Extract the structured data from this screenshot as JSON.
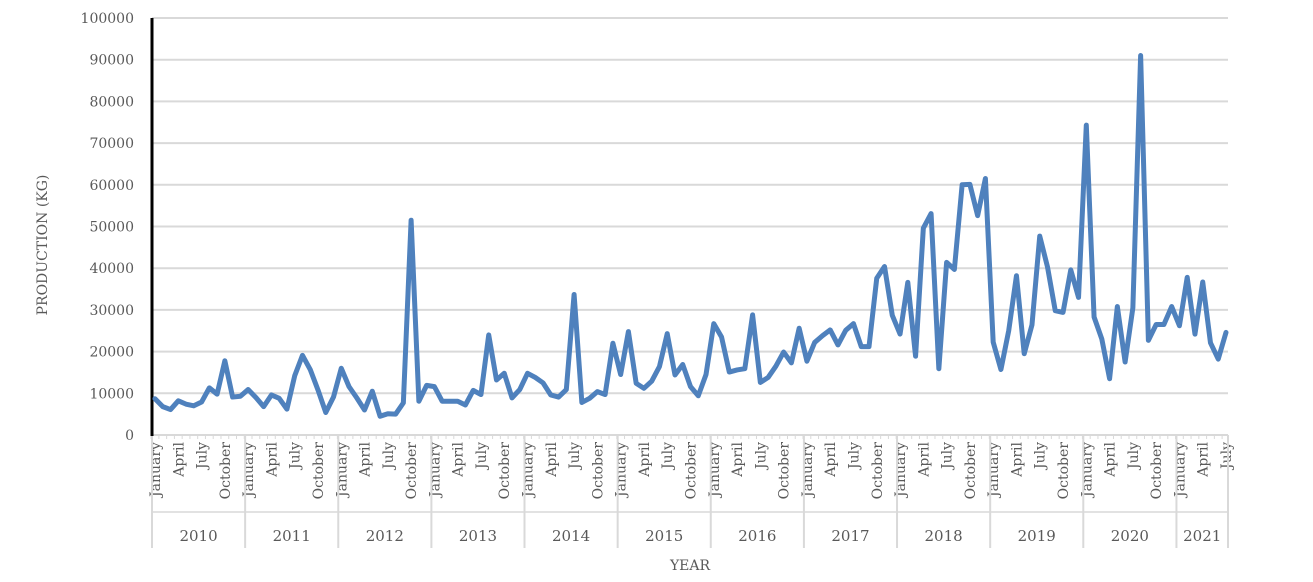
{
  "chart_data": {
    "type": "line",
    "title": "",
    "xlabel": "YEAR",
    "ylabel": "PRODUCTION (KG)",
    "ylim": [
      0,
      100000
    ],
    "yticks": [
      0,
      10000,
      20000,
      30000,
      40000,
      50000,
      60000,
      70000,
      80000,
      90000,
      100000
    ],
    "grid": "horizontal",
    "line_color": "#4f81bd",
    "month_tick_labels": [
      "January",
      "April",
      "July",
      "October"
    ],
    "year_groups": [
      {
        "year": "2010",
        "months": 12
      },
      {
        "year": "2011",
        "months": 12
      },
      {
        "year": "2012",
        "months": 12
      },
      {
        "year": "2013",
        "months": 12
      },
      {
        "year": "2014",
        "months": 12
      },
      {
        "year": "2015",
        "months": 12
      },
      {
        "year": "2016",
        "months": 12
      },
      {
        "year": "2017",
        "months": 12
      },
      {
        "year": "2018",
        "months": 12
      },
      {
        "year": "2019",
        "months": 12
      },
      {
        "year": "2020",
        "months": 12
      },
      {
        "year": "2021",
        "months": 7
      }
    ],
    "series": [
      {
        "values": [
          8700,
          6800,
          6100,
          8200,
          7400,
          7000,
          7900,
          11300,
          9800,
          17800,
          9100,
          9300,
          10900,
          9000,
          6800,
          9600,
          8800,
          6200,
          14200,
          19100,
          15700,
          10800,
          5400,
          9100,
          16000,
          11600,
          8900,
          6000,
          10500,
          4500,
          5100,
          5000,
          7700,
          51500,
          8100,
          11900,
          11600,
          8100,
          8100,
          8100,
          7200,
          10700,
          9700,
          24000,
          13200,
          14800,
          8900,
          10900,
          14800,
          13800,
          12500,
          9600,
          9100,
          10900,
          33700,
          7800,
          8800,
          10400,
          9700,
          22000,
          14500,
          24800,
          12400,
          11200,
          12900,
          16400,
          24300,
          14400,
          16900,
          11600,
          9400,
          14500,
          26700,
          23500,
          15100,
          15600,
          15900,
          28800,
          12600,
          13800,
          16500,
          19900,
          17300,
          25600,
          17700,
          22200,
          23800,
          25200,
          21600,
          25100,
          26700,
          21200,
          21200,
          37600,
          40400,
          28700,
          24200,
          36600,
          18900,
          49600,
          53100,
          15900,
          41400,
          39700,
          60000,
          60100,
          52600,
          61500,
          22300,
          15700,
          25000,
          38200,
          19500,
          26400,
          47700,
          40300,
          29800,
          29400,
          39600,
          33000,
          74300,
          28300,
          23000,
          13500,
          30800,
          17500,
          30500,
          91000,
          22700,
          26500,
          26500,
          30800,
          26200,
          37800,
          24200,
          36700,
          22100,
          18200,
          24600
        ]
      }
    ]
  }
}
